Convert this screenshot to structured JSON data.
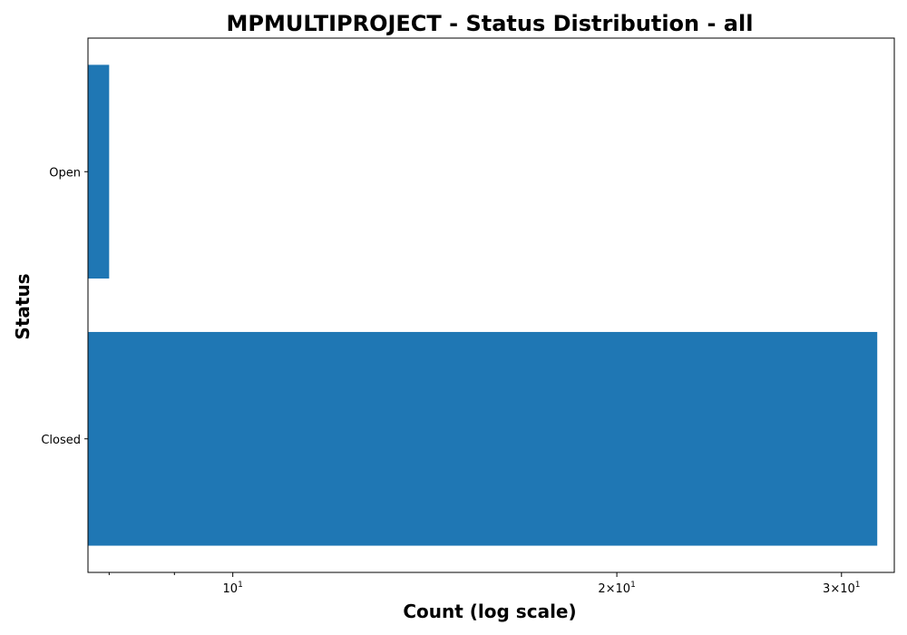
{
  "chart_data": {
    "type": "bar",
    "orientation": "horizontal",
    "title": "MPMULTIPROJECT - Status Distribution - all",
    "xlabel": "Count (log scale)",
    "ylabel": "Status",
    "xscale": "log",
    "xlim": [
      7.7,
      33
    ],
    "categories": [
      "Open",
      "Closed"
    ],
    "values": [
      8,
      32
    ],
    "bar_color": "#1f77b4",
    "grid": false,
    "legend": false,
    "x_ticks": [
      {
        "value": 10,
        "base": "10",
        "exp": "1"
      },
      {
        "value": 20,
        "base": "2×10",
        "exp": "1"
      },
      {
        "value": 30,
        "base": "3×10",
        "exp": "1"
      }
    ],
    "x_minor_ticks": [
      8,
      9
    ]
  }
}
